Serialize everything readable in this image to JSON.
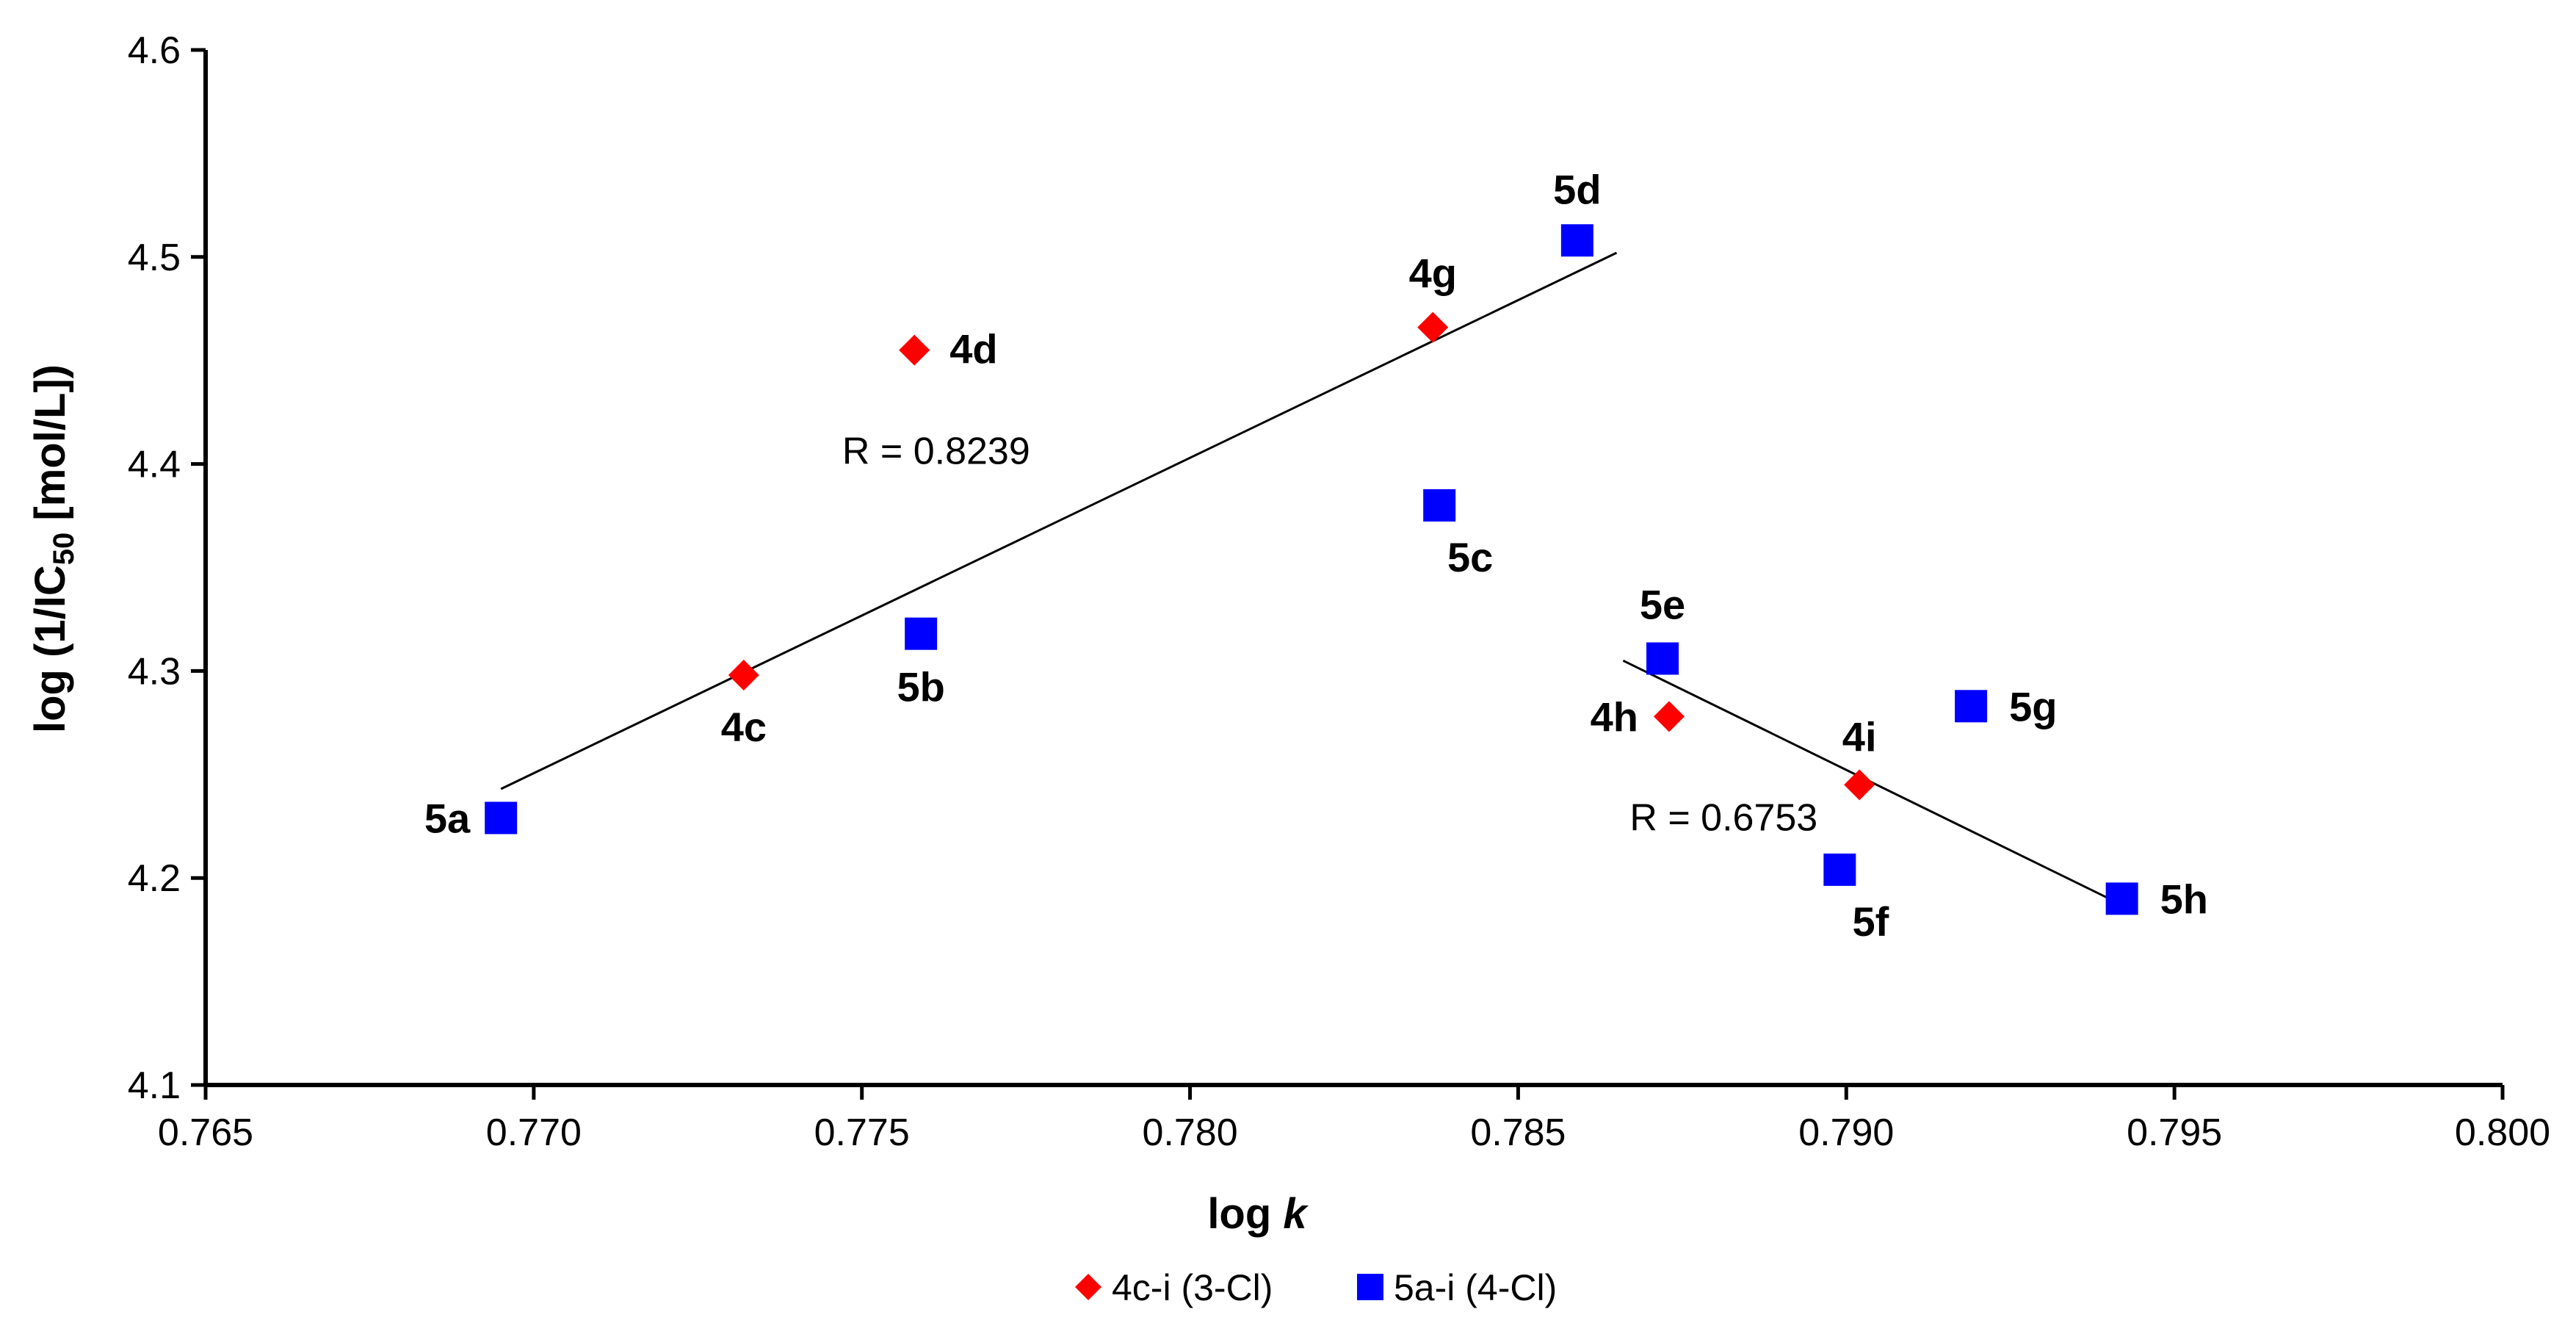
{
  "chart_data": {
    "type": "scatter",
    "title": "",
    "xlabel": {
      "prefix": "log ",
      "italic": "k"
    },
    "ylabel": {
      "prefix": "log (1/IC",
      "sub": "50",
      "suffix": " [mol/L])"
    },
    "xlim": [
      0.765,
      0.8
    ],
    "ylim": [
      4.1,
      4.6
    ],
    "x_ticks": [
      "0.765",
      "0.770",
      "0.775",
      "0.780",
      "0.785",
      "0.790",
      "0.795",
      "0.800"
    ],
    "x_tick_values": [
      0.765,
      0.77,
      0.775,
      0.78,
      0.785,
      0.79,
      0.795,
      0.8
    ],
    "y_ticks": [
      "4.1",
      "4.2",
      "4.3",
      "4.4",
      "4.5",
      "4.6"
    ],
    "y_tick_values": [
      4.1,
      4.2,
      4.3,
      4.4,
      4.5,
      4.6
    ],
    "grid": false,
    "legend_position": "bottom",
    "series": [
      {
        "name": "4c-i (3-Cl)",
        "marker": "diamond",
        "color": "#ff0000",
        "points": [
          {
            "label": "4c",
            "x": 0.7732,
            "y": 4.298
          },
          {
            "label": "4d",
            "x": 0.7758,
            "y": 4.455
          },
          {
            "label": "4g",
            "x": 0.7837,
            "y": 4.466
          },
          {
            "label": "4h",
            "x": 0.7873,
            "y": 4.278
          },
          {
            "label": "4i",
            "x": 0.7902,
            "y": 4.245
          }
        ]
      },
      {
        "name": "5a-i (4-Cl)",
        "marker": "square",
        "color": "#0000ff",
        "points": [
          {
            "label": "5a",
            "x": 0.7695,
            "y": 4.229
          },
          {
            "label": "5b",
            "x": 0.7759,
            "y": 4.318
          },
          {
            "label": "5c",
            "x": 0.7838,
            "y": 4.38
          },
          {
            "label": "5d",
            "x": 0.7859,
            "y": 4.508
          },
          {
            "label": "5e",
            "x": 0.7872,
            "y": 4.306
          },
          {
            "label": "5f",
            "x": 0.7899,
            "y": 4.204
          },
          {
            "label": "5g",
            "x": 0.7919,
            "y": 4.283
          },
          {
            "label": "5h",
            "x": 0.7942,
            "y": 4.19
          }
        ]
      }
    ],
    "trendlines": [
      {
        "name": "trendline-1",
        "x1": 0.7695,
        "y1": 4.243,
        "x2": 0.7865,
        "y2": 4.502
      },
      {
        "name": "trendline-2",
        "x1": 0.7866,
        "y1": 4.305,
        "x2": 0.7942,
        "y2": 4.187
      }
    ],
    "annotations": [
      {
        "text": "R = 0.8239",
        "x": 0.7747,
        "y": 4.4
      },
      {
        "text": "R = 0.6753",
        "x": 0.7867,
        "y": 4.223
      }
    ]
  }
}
